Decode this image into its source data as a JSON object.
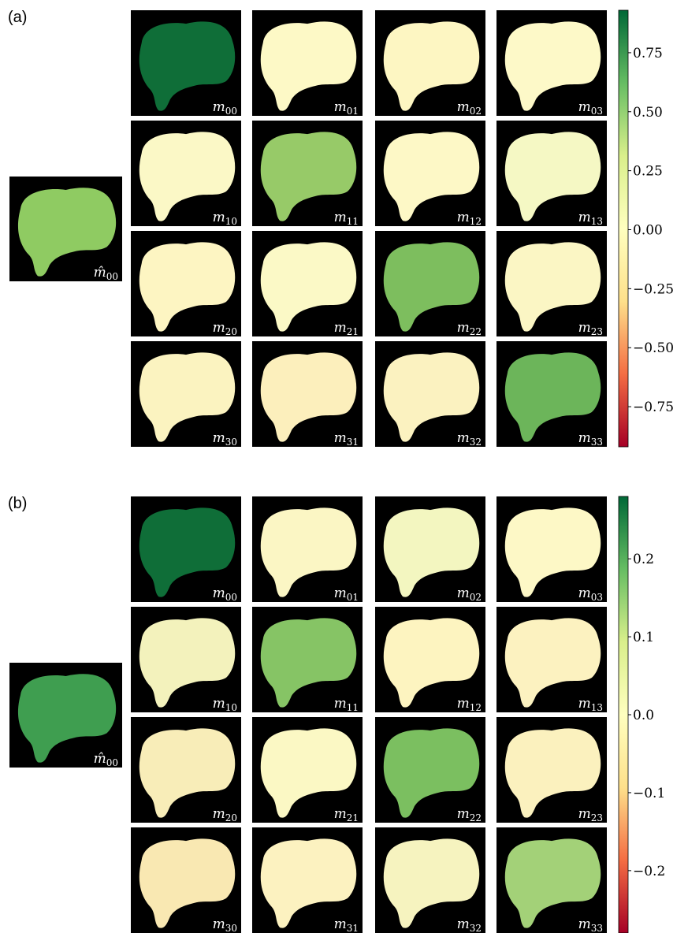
{
  "panels": [
    {
      "label": "(a)",
      "reference": {
        "symbol": "m̂",
        "subscript": "00",
        "color": "#8fcb62"
      },
      "element_symbol": "m",
      "elements": [
        {
          "subscript": "00",
          "color": "#0f6e38"
        },
        {
          "subscript": "01",
          "color": "#fdf9c6"
        },
        {
          "subscript": "02",
          "color": "#fdf6c2"
        },
        {
          "subscript": "03",
          "color": "#fdf9c8"
        },
        {
          "subscript": "10",
          "color": "#fbf8c6"
        },
        {
          "subscript": "11",
          "color": "#97ca68"
        },
        {
          "subscript": "12",
          "color": "#fdf8c6"
        },
        {
          "subscript": "13",
          "color": "#f5f8c4"
        },
        {
          "subscript": "20",
          "color": "#fdf5c2"
        },
        {
          "subscript": "21",
          "color": "#fbf9c6"
        },
        {
          "subscript": "22",
          "color": "#7dbe5e"
        },
        {
          "subscript": "23",
          "color": "#fbf6c4"
        },
        {
          "subscript": "30",
          "color": "#fbf3c0"
        },
        {
          "subscript": "31",
          "color": "#fcefbc"
        },
        {
          "subscript": "32",
          "color": "#fbf2c0"
        },
        {
          "subscript": "33",
          "color": "#6cb55a"
        }
      ],
      "colorbar": {
        "lim": [
          -0.92,
          0.93
        ],
        "ticks": [
          0.75,
          {
            "value": 0.5,
            "label": "0.50"
          },
          0.25,
          {
            "value": 0,
            "label": "0.00"
          },
          {
            "value": -0.25,
            "label": "−0.25"
          },
          {
            "value": -0.5,
            "label": "−0.50"
          },
          {
            "value": -0.75,
            "label": "−0.75"
          }
        ]
      }
    },
    {
      "label": "(b)",
      "reference": {
        "symbol": "m̂",
        "subscript": "00",
        "color": "#3f9e50"
      },
      "element_symbol": "m",
      "elements": [
        {
          "subscript": "00",
          "color": "#0f6e38"
        },
        {
          "subscript": "01",
          "color": "#fbf6c4"
        },
        {
          "subscript": "02",
          "color": "#f3f6c0"
        },
        {
          "subscript": "03",
          "color": "#fdf8c6"
        },
        {
          "subscript": "10",
          "color": "#f3f2bc"
        },
        {
          "subscript": "11",
          "color": "#86c465"
        },
        {
          "subscript": "12",
          "color": "#fdf4c0"
        },
        {
          "subscript": "13",
          "color": "#fcf2c0"
        },
        {
          "subscript": "20",
          "color": "#f8edb8"
        },
        {
          "subscript": "21",
          "color": "#fbf8c4"
        },
        {
          "subscript": "22",
          "color": "#7bbf60"
        },
        {
          "subscript": "23",
          "color": "#fbf1be"
        },
        {
          "subscript": "30",
          "color": "#f9e8b2"
        },
        {
          "subscript": "31",
          "color": "#fcf2c0"
        },
        {
          "subscript": "32",
          "color": "#f6f3bf"
        },
        {
          "subscript": "33",
          "color": "#a3d178"
        }
      ],
      "colorbar": {
        "lim": [
          -0.28,
          0.28
        ],
        "ticks": [
          0.2,
          0.1,
          {
            "value": 0,
            "label": "0.0"
          },
          {
            "value": -0.1,
            "label": "−0.1"
          },
          {
            "value": -0.2,
            "label": "−0.2"
          }
        ]
      }
    }
  ],
  "colormap": [
    "#a50026",
    "#f46d43",
    "#fee08b",
    "#ffffbf",
    "#d9ef8b",
    "#66bd63",
    "#006837"
  ]
}
